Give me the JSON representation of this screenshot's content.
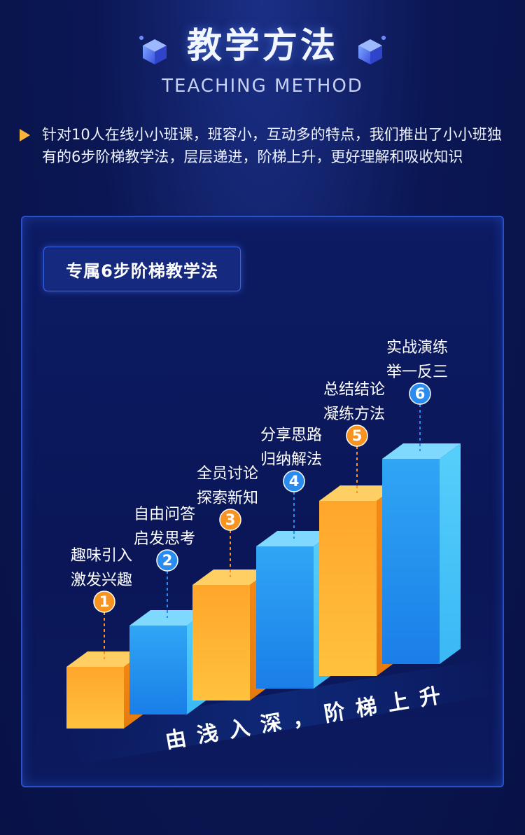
{
  "header": {
    "title": "教学方法",
    "subtitle": "TEACHING METHOD"
  },
  "intro": {
    "text": "针对10人在线小小班课，班容小，互动多的特点，我们推出了小小班独有的6步阶梯教学法，层层递进，阶梯上升，更好理解和吸收知识"
  },
  "panel": {
    "badge": "专属6步阶梯教学法",
    "slogan": "由浅入深，阶梯上升",
    "steps": [
      {
        "num": "1",
        "line1": "趣味引入",
        "line2": "激发兴趣",
        "color": "orange"
      },
      {
        "num": "2",
        "line1": "自由问答",
        "line2": "启发思考",
        "color": "blue"
      },
      {
        "num": "3",
        "line1": "全员讨论",
        "line2": "探索新知",
        "color": "orange"
      },
      {
        "num": "4",
        "line1": "分享思路",
        "line2": "归纳解法",
        "color": "blue"
      },
      {
        "num": "5",
        "line1": "总结结论",
        "line2": "凝练方法",
        "color": "orange"
      },
      {
        "num": "6",
        "line1": "实战演练",
        "line2": "举一反三",
        "color": "blue"
      }
    ]
  },
  "colors": {
    "background": "#0b1754",
    "accent_orange": "#f79420",
    "accent_blue": "#2b8cf0",
    "arrow": "#f6b43a"
  },
  "icons": {
    "title_decoration": "cube-icon",
    "intro_bullet": "triangle-arrow-icon"
  }
}
